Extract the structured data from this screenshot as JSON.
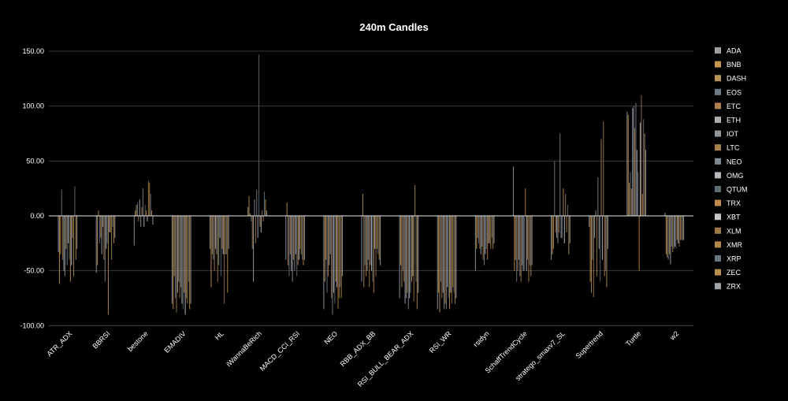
{
  "chart_data": {
    "type": "bar",
    "title": "240m Candles",
    "xlabel": "",
    "ylabel": "",
    "ylim": [
      -100,
      160
    ],
    "yticks": [
      "150.00",
      "100.00",
      "50.00",
      "0.00",
      "-50.00",
      "-100.00"
    ],
    "grid": true,
    "legend_position": "right",
    "categories": [
      "ATR_ADX",
      "BBRSI",
      "bestone",
      "EMADIV",
      "HL",
      "iWannaBeRich",
      "MACD_CCI_RSI",
      "NEO",
      "RBB_ADX_BB",
      "RSI_BULL_BEAR_ADX",
      "RSI_WR",
      "rsidyn",
      "SchaffTrendCycle",
      "stratego_smaxv7_SL",
      "Supertrend",
      "Turtle",
      "w2"
    ],
    "series": [
      {
        "name": "ADA",
        "color": "#9aa0a6",
        "values": [
          -33,
          -52,
          -27,
          -80,
          -30,
          8,
          -40,
          -85,
          -60,
          -75,
          -85,
          -50,
          45,
          -40,
          -10,
          95,
          3
        ]
      },
      {
        "name": "BNB",
        "color": "#c8964e",
        "values": [
          -62,
          -45,
          5,
          -85,
          -65,
          18,
          12,
          -60,
          20,
          -45,
          -70,
          -30,
          -50,
          -35,
          -60,
          92,
          -35
        ]
      },
      {
        "name": "DASH",
        "color": "#b8945a",
        "values": [
          -35,
          5,
          10,
          -55,
          -35,
          2,
          -45,
          -40,
          -65,
          -65,
          -88,
          -20,
          -40,
          -30,
          -70,
          30,
          -38
        ]
      },
      {
        "name": "EOS",
        "color": "#6b7b88",
        "values": [
          24,
          -25,
          12,
          -75,
          -40,
          -5,
          -55,
          -70,
          -45,
          -50,
          -60,
          -25,
          -60,
          50,
          -40,
          40,
          -40
        ]
      },
      {
        "name": "ETC",
        "color": "#b08050",
        "values": [
          -40,
          -20,
          -5,
          -88,
          -50,
          -30,
          -35,
          -55,
          -55,
          -60,
          -75,
          -30,
          -50,
          -15,
          -74,
          25,
          -35
        ]
      },
      {
        "name": "ETH",
        "color": "#a9adb2",
        "values": [
          -50,
          -35,
          15,
          -70,
          -30,
          -60,
          -50,
          -45,
          -50,
          -80,
          -70,
          -35,
          -40,
          -20,
          -20,
          98,
          -44
        ]
      },
      {
        "name": "IOT",
        "color": "#8e9499",
        "values": [
          -55,
          -10,
          -10,
          -60,
          -35,
          15,
          -60,
          -35,
          -40,
          -75,
          -85,
          -28,
          -55,
          -25,
          5,
          100,
          -28
        ]
      },
      {
        "name": "LTC",
        "color": "#a8804a",
        "values": [
          -30,
          -40,
          8,
          -75,
          -60,
          -25,
          -40,
          -75,
          -65,
          -70,
          -80,
          -40,
          -60,
          -15,
          -55,
          80,
          -33
        ]
      },
      {
        "name": "NEO",
        "color": "#7f8a95",
        "values": [
          -45,
          -60,
          25,
          -65,
          -45,
          24,
          -50,
          -90,
          -45,
          -85,
          -85,
          -45,
          -45,
          75,
          35,
          103,
          -30
        ]
      },
      {
        "name": "OMG",
        "color": "#b5b8bc",
        "values": [
          -25,
          -30,
          -10,
          -80,
          -20,
          -20,
          -35,
          -70,
          -50,
          -75,
          -65,
          -35,
          -50,
          -20,
          -30,
          60,
          -28
        ]
      },
      {
        "name": "QTUM",
        "color": "#5e6b73",
        "values": [
          -40,
          -25,
          10,
          -85,
          -55,
          147,
          -55,
          -80,
          -60,
          -70,
          -75,
          -30,
          -50,
          -20,
          -60,
          40,
          -30
        ]
      },
      {
        "name": "TRX",
        "color": "#c08a48",
        "values": [
          -60,
          -90,
          5,
          -70,
          -30,
          -10,
          -45,
          -60,
          -70,
          -60,
          -85,
          -40,
          25,
          25,
          70,
          -50,
          -22
        ]
      },
      {
        "name": "XBT",
        "color": "#c4c7ca",
        "values": [
          -45,
          -15,
          -5,
          -90,
          -35,
          -15,
          -40,
          -65,
          -30,
          -55,
          -70,
          -25,
          -50,
          -25,
          -40,
          85,
          -25
        ]
      },
      {
        "name": "XLM",
        "color": "#a07848",
        "values": [
          -20,
          -15,
          32,
          -75,
          -80,
          5,
          -30,
          -85,
          -55,
          -78,
          -80,
          -25,
          -40,
          20,
          86,
          110,
          -28
        ]
      },
      {
        "name": "XMR",
        "color": "#b0884e",
        "values": [
          -55,
          -40,
          30,
          -80,
          -35,
          -5,
          -35,
          -75,
          -30,
          28,
          -65,
          -30,
          -60,
          -15,
          -55,
          20,
          -22
        ]
      },
      {
        "name": "XRP",
        "color": "#68747e",
        "values": [
          27,
          -10,
          20,
          -60,
          -35,
          22,
          -40,
          -65,
          -35,
          -60,
          -70,
          -20,
          -45,
          10,
          -50,
          88,
          -22
        ]
      },
      {
        "name": "ZEC",
        "color": "#b8904e",
        "values": [
          -40,
          -25,
          5,
          -85,
          -70,
          15,
          -45,
          -75,
          -40,
          -85,
          -80,
          -30,
          -55,
          -35,
          -65,
          75,
          -22
        ]
      },
      {
        "name": "ZRX",
        "color": "#9fa4a9",
        "values": [
          -30,
          -20,
          -8,
          -80,
          -30,
          5,
          -40,
          -55,
          -45,
          -70,
          -75,
          -25,
          -45,
          -25,
          -30,
          60,
          -22
        ]
      }
    ]
  }
}
